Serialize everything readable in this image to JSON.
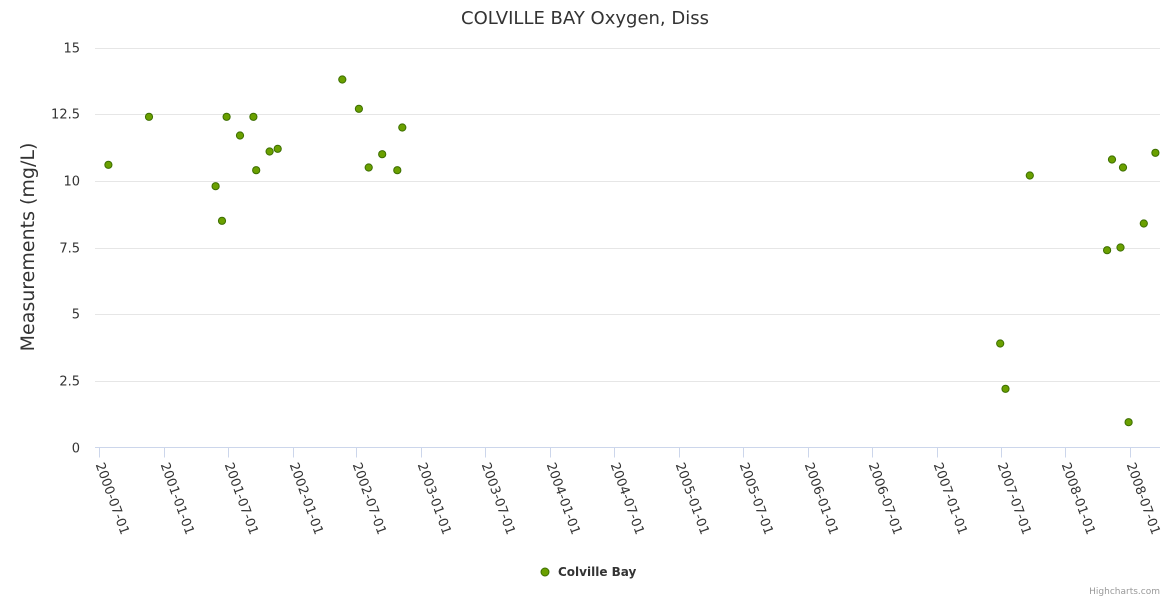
{
  "credits": "Highcharts.com",
  "colors": {
    "marker_fill": "#6aa000",
    "marker_stroke": "#3c6e00"
  },
  "chart_data": {
    "type": "scatter",
    "title": "COLVILLE BAY Oxygen, Diss",
    "xlabel": "",
    "ylabel": "Measurements (mg/L)",
    "ylim": [
      0,
      15
    ],
    "yticks": [
      "0",
      "2.5",
      "5",
      "7.5",
      "10",
      "12.5",
      "15"
    ],
    "xlim": [
      "2000-06-20",
      "2008-09-25"
    ],
    "xticks": [
      "2000-07-01",
      "2001-01-01",
      "2001-07-01",
      "2002-01-01",
      "2002-07-01",
      "2003-01-01",
      "2003-07-01",
      "2004-01-01",
      "2004-07-01",
      "2005-01-01",
      "2005-07-01",
      "2006-01-01",
      "2006-07-01",
      "2007-01-01",
      "2007-07-01",
      "2008-01-01",
      "2008-07-01"
    ],
    "grid": true,
    "legend_position": "bottom-center",
    "series": [
      {
        "name": "Colville Bay",
        "points": [
          {
            "x": "2000-07-28",
            "y": 10.6
          },
          {
            "x": "2000-11-20",
            "y": 12.4
          },
          {
            "x": "2001-05-28",
            "y": 9.8
          },
          {
            "x": "2001-06-15",
            "y": 8.5
          },
          {
            "x": "2001-06-28",
            "y": 12.4
          },
          {
            "x": "2001-08-05",
            "y": 11.7
          },
          {
            "x": "2001-09-12",
            "y": 12.4
          },
          {
            "x": "2001-09-20",
            "y": 10.4
          },
          {
            "x": "2001-10-28",
            "y": 11.1
          },
          {
            "x": "2001-11-20",
            "y": 11.2
          },
          {
            "x": "2002-05-22",
            "y": 13.8
          },
          {
            "x": "2002-07-08",
            "y": 12.7
          },
          {
            "x": "2002-08-05",
            "y": 10.5
          },
          {
            "x": "2002-09-12",
            "y": 11.0
          },
          {
            "x": "2002-10-25",
            "y": 10.4
          },
          {
            "x": "2002-11-08",
            "y": 12.0
          },
          {
            "x": "2007-06-30",
            "y": 3.9
          },
          {
            "x": "2007-07-15",
            "y": 2.2
          },
          {
            "x": "2007-09-22",
            "y": 10.2
          },
          {
            "x": "2008-04-28",
            "y": 7.4
          },
          {
            "x": "2008-05-12",
            "y": 10.8
          },
          {
            "x": "2008-06-05",
            "y": 7.5
          },
          {
            "x": "2008-06-12",
            "y": 10.5
          },
          {
            "x": "2008-06-28",
            "y": 0.95
          },
          {
            "x": "2008-08-10",
            "y": 8.4
          },
          {
            "x": "2008-09-12",
            "y": 11.05
          }
        ]
      }
    ]
  }
}
